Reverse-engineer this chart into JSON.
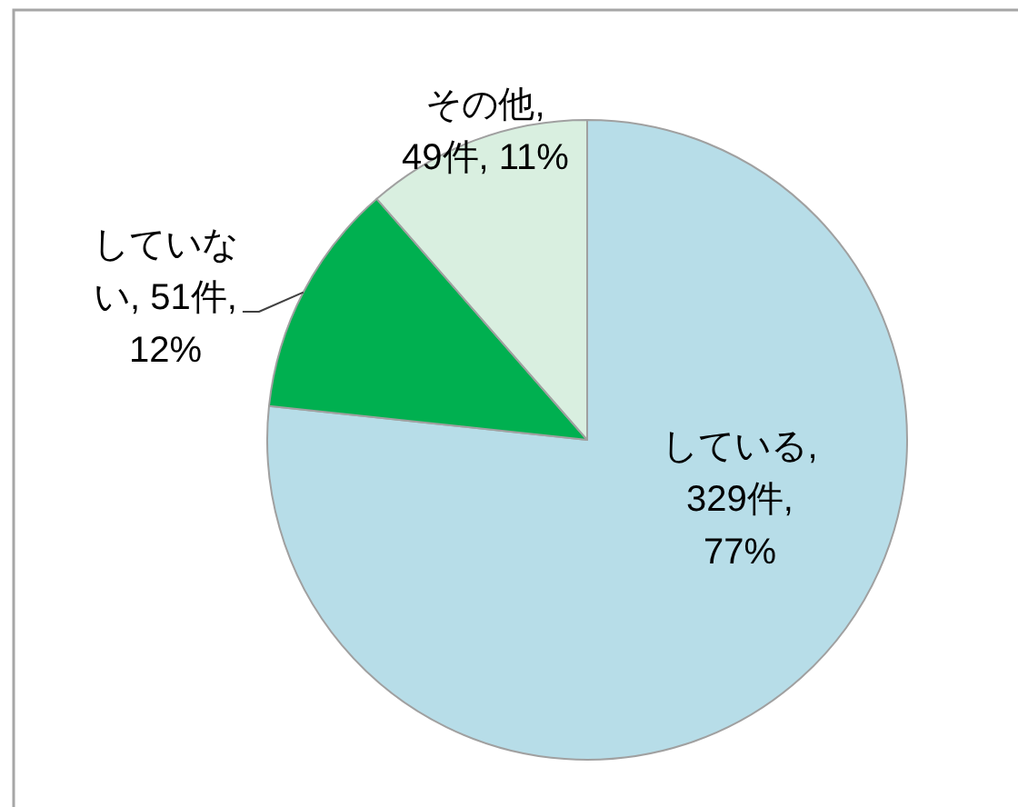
{
  "chart_data": {
    "type": "pie",
    "categories": [
      "している",
      "していない",
      "その他"
    ],
    "values": [
      329,
      51,
      49
    ],
    "value_labels": [
      ", 329件, 77%",
      ", 51件, 12%",
      ", 49件, 11%"
    ],
    "colors": [
      "#b7dde8",
      "#00b050",
      "#d9efe0"
    ]
  }
}
